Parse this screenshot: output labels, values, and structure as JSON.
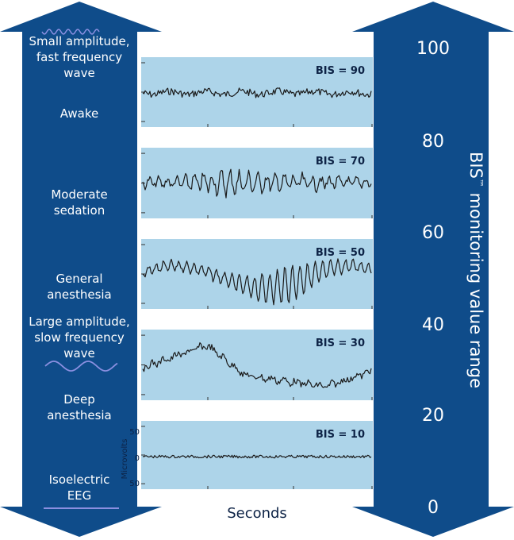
{
  "left_labels": [
    {
      "key": "small",
      "lines": [
        "Small amplitude,",
        "fast frequency",
        "wave"
      ]
    },
    {
      "key": "awake",
      "lines": [
        "Awake"
      ]
    },
    {
      "key": "moderate",
      "lines": [
        "Moderate",
        "sedation"
      ]
    },
    {
      "key": "general",
      "lines": [
        "General",
        "anesthesia"
      ]
    },
    {
      "key": "large",
      "lines": [
        "Large amplitude,",
        "slow frequency",
        "wave"
      ]
    },
    {
      "key": "deep",
      "lines": [
        "Deep",
        "anesthesia"
      ]
    },
    {
      "key": "iso",
      "lines": [
        "Isoelectric",
        "EEG"
      ]
    }
  ],
  "panels": [
    {
      "bis": "BIS = 90"
    },
    {
      "bis": "BIS = 70"
    },
    {
      "bis": "BIS = 50"
    },
    {
      "bis": "BIS = 30"
    },
    {
      "bis": "BIS = 10"
    }
  ],
  "microvolts_axis": {
    "label": "Microvolts",
    "ticks": [
      "50",
      "0",
      "50"
    ]
  },
  "x_axis_label": "Seconds",
  "right_axis": {
    "title_main": "BIS",
    "title_tm": "™",
    "title_rest": " monitoring value range",
    "values": [
      "100",
      "80",
      "60",
      "40",
      "20",
      "0"
    ]
  },
  "colors": {
    "arrow": "#0f4c8a",
    "panel": "#add4e9",
    "trace": "#1a1a1a",
    "text_dark": "#0d2346",
    "wave_icon": "#8a8fe0"
  }
}
